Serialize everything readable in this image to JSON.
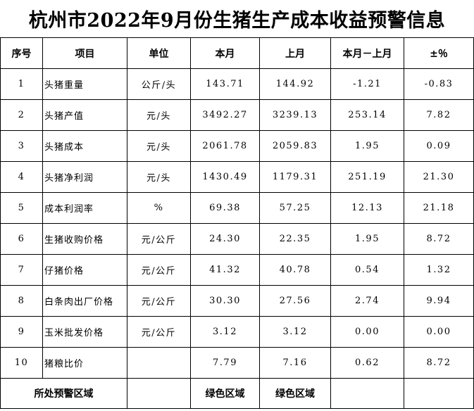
{
  "title": "杭州市2022年9月份生猪生产成本收益预警信息",
  "headers": {
    "seq": "序号",
    "item": "项目",
    "unit": "单位",
    "current": "本月",
    "previous": "上月",
    "diff": "本月－上月",
    "pct": "±％"
  },
  "rows": [
    {
      "seq": "1",
      "item": "头猪重量",
      "unit": "公斤/头",
      "current": "143.71",
      "previous": "144.92",
      "diff": "-1.21",
      "pct": "-0.83"
    },
    {
      "seq": "2",
      "item": "头猪产值",
      "unit": "元/头",
      "current": "3492.27",
      "previous": "3239.13",
      "diff": "253.14",
      "pct": "7.82"
    },
    {
      "seq": "3",
      "item": "头猪成本",
      "unit": "元/头",
      "current": "2061.78",
      "previous": "2059.83",
      "diff": "1.95",
      "pct": "0.09"
    },
    {
      "seq": "4",
      "item": "头猪净利润",
      "unit": "元/头",
      "current": "1430.49",
      "previous": "1179.31",
      "diff": "251.19",
      "pct": "21.30"
    },
    {
      "seq": "5",
      "item": "成本利润率",
      "unit": "%",
      "current": "69.38",
      "previous": "57.25",
      "diff": "12.13",
      "pct": "21.18"
    },
    {
      "seq": "6",
      "item": "生猪收购价格",
      "unit": "元/公斤",
      "current": "24.30",
      "previous": "22.35",
      "diff": "1.95",
      "pct": "8.72"
    },
    {
      "seq": "7",
      "item": "仔猪价格",
      "unit": "元/公斤",
      "current": "41.32",
      "previous": "40.78",
      "diff": "0.54",
      "pct": "1.32"
    },
    {
      "seq": "8",
      "item": "白条肉出厂价格",
      "unit": "元/公斤",
      "current": "30.30",
      "previous": "27.56",
      "diff": "2.74",
      "pct": "9.94"
    },
    {
      "seq": "9",
      "item": "玉米批发价格",
      "unit": "元/公斤",
      "current": "3.12",
      "previous": "3.12",
      "diff": "0.00",
      "pct": "0.00"
    },
    {
      "seq": "10",
      "item": "猪粮比价",
      "unit": "",
      "current": "7.79",
      "previous": "7.16",
      "diff": "0.62",
      "pct": "8.72"
    }
  ],
  "footer": {
    "label": "所处预警区域",
    "current_zone": "绿色区域",
    "previous_zone": "绿色区域"
  }
}
